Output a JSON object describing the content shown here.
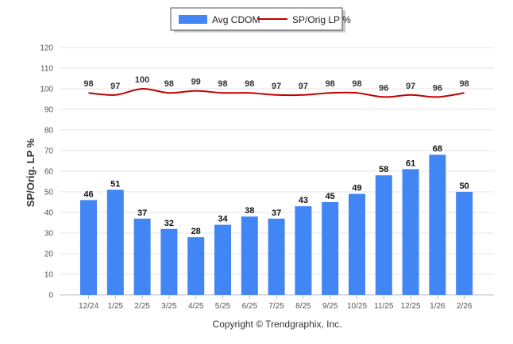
{
  "chart_data": {
    "type": "bar",
    "categories": [
      "12/24",
      "1/25",
      "2/25",
      "3/25",
      "4/25",
      "5/25",
      "6/25",
      "7/25",
      "8/25",
      "9/25",
      "10/25",
      "11/25",
      "12/25",
      "1/26",
      "2/26"
    ],
    "series": [
      {
        "name": "Avg CDOM",
        "type": "bar",
        "color": "#4285f4",
        "values": [
          46,
          51,
          37,
          32,
          28,
          34,
          38,
          37,
          43,
          45,
          49,
          58,
          61,
          68,
          50
        ]
      },
      {
        "name": "SP/Orig LP %",
        "type": "line",
        "color": "#c00000",
        "values": [
          98,
          97,
          100,
          98,
          99,
          98,
          98,
          97,
          97,
          98,
          98,
          96,
          97,
          96,
          98
        ]
      }
    ],
    "ylabel": "SP/Orig. LP %",
    "ylim": [
      0,
      120
    ],
    "yticks": [
      0,
      10,
      20,
      30,
      40,
      50,
      60,
      70,
      80,
      90,
      100,
      110,
      120
    ],
    "grid": true,
    "legend_position": "top-center",
    "footer": "Copyright © Trendgraphix, Inc."
  }
}
